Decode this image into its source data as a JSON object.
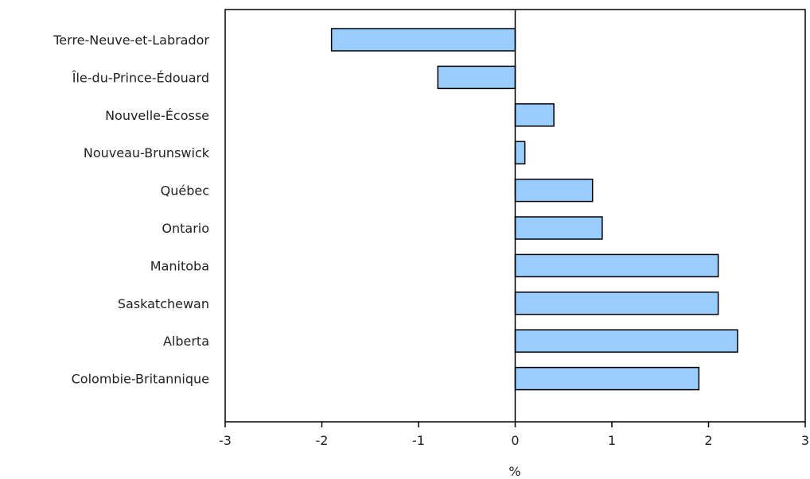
{
  "chart_data": {
    "type": "bar",
    "orientation": "horizontal",
    "title": "",
    "xlabel": "%",
    "ylabel": "",
    "xlim": [
      -3,
      3
    ],
    "xticks": [
      -3,
      -2,
      -1,
      0,
      1,
      2,
      3
    ],
    "grid": false,
    "bar_color": "#99ccff",
    "bar_stroke": "#000000",
    "categories": [
      "Terre-Neuve-et-Labrador",
      "Île-du-Prince-Édouard",
      "Nouvelle-Écosse",
      "Nouveau-Brunswick",
      "Québec",
      "Ontario",
      "Manitoba",
      "Saskatchewan",
      "Alberta",
      "Colombie-Britannique"
    ],
    "values": [
      -1.9,
      -0.8,
      0.4,
      0.1,
      0.8,
      0.9,
      2.1,
      2.1,
      2.3,
      1.9
    ]
  }
}
